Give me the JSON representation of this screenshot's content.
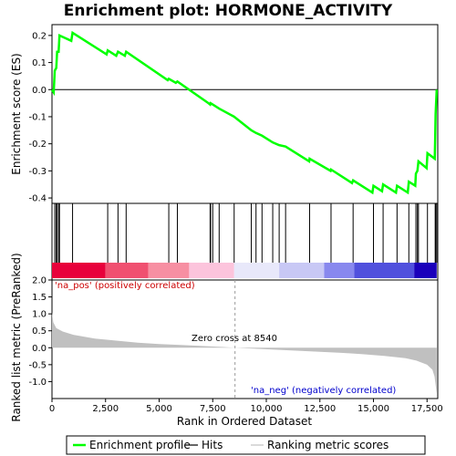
{
  "chart_data": {
    "title": "Enrichment plot: HORMONE_ACTIVITY",
    "xlabel": "Rank in Ordered Dataset",
    "es_panel": {
      "type": "line",
      "ylabel": "Enrichment score (ES)",
      "ylim": [
        -0.42,
        0.24
      ],
      "yticks": [
        0.2,
        0.1,
        0.0,
        -0.1,
        -0.2,
        -0.3,
        -0.4
      ],
      "ytick_labels": [
        "0.2",
        "0.1",
        "0.0",
        "-0.1",
        "-0.2",
        "-0.3",
        "-0.4"
      ],
      "line_color": "#00ff00",
      "points": [
        [
          0,
          0
        ],
        [
          80,
          -0.01
        ],
        [
          130,
          0.07
        ],
        [
          200,
          0.08
        ],
        [
          240,
          0.14
        ],
        [
          310,
          0.14
        ],
        [
          350,
          0.2
        ],
        [
          900,
          0.18
        ],
        [
          960,
          0.21
        ],
        [
          2550,
          0.13
        ],
        [
          2600,
          0.145
        ],
        [
          3000,
          0.125
        ],
        [
          3080,
          0.14
        ],
        [
          3400,
          0.125
        ],
        [
          3460,
          0.14
        ],
        [
          5400,
          0.035
        ],
        [
          5450,
          0.04
        ],
        [
          5780,
          0.025
        ],
        [
          5850,
          0.03
        ],
        [
          7300,
          -0.05
        ],
        [
          7380,
          -0.055
        ],
        [
          7400,
          -0.05
        ],
        [
          7500,
          -0.055
        ],
        [
          7800,
          -0.07
        ],
        [
          8500,
          -0.1
        ],
        [
          9300,
          -0.15
        ],
        [
          9520,
          -0.16
        ],
        [
          9800,
          -0.17
        ],
        [
          10300,
          -0.195
        ],
        [
          10600,
          -0.205
        ],
        [
          10900,
          -0.21
        ],
        [
          12000,
          -0.265
        ],
        [
          12020,
          -0.255
        ],
        [
          13000,
          -0.3
        ],
        [
          13020,
          -0.295
        ],
        [
          14000,
          -0.345
        ],
        [
          14050,
          -0.335
        ],
        [
          14950,
          -0.38
        ],
        [
          15000,
          -0.355
        ],
        [
          15400,
          -0.375
        ],
        [
          15450,
          -0.35
        ],
        [
          16050,
          -0.38
        ],
        [
          16100,
          -0.355
        ],
        [
          16600,
          -0.38
        ],
        [
          16650,
          -0.34
        ],
        [
          16950,
          -0.355
        ],
        [
          16980,
          -0.31
        ],
        [
          17050,
          -0.3
        ],
        [
          17100,
          -0.265
        ],
        [
          17480,
          -0.29
        ],
        [
          17520,
          -0.235
        ],
        [
          17860,
          -0.255
        ],
        [
          17880,
          -0.18
        ],
        [
          17900,
          -0.09
        ],
        [
          17950,
          0.0
        ]
      ]
    },
    "hits": [
      130,
      200,
      240,
      310,
      350,
      960,
      2600,
      3080,
      3460,
      5450,
      5850,
      7380,
      7400,
      7500,
      7800,
      8500,
      9300,
      9520,
      9800,
      10300,
      10600,
      10900,
      12020,
      13020,
      14050,
      15000,
      15450,
      16100,
      16650,
      16980,
      17050,
      17100,
      17520,
      17880,
      17900,
      17950
    ],
    "rank_panel": {
      "type": "area",
      "ylabel": "Ranked list metric (PreRanked)",
      "ylim": [
        -1.5,
        2.0
      ],
      "yticks": [
        2.0,
        1.5,
        1.0,
        0.5,
        0.0,
        -0.5,
        -1.0
      ],
      "ytick_labels": [
        "2.0",
        "1.5",
        "1.0",
        "0.5",
        "0.0",
        "-0.5",
        "-1.0"
      ],
      "fill_color": "#c0c0c0",
      "points": [
        [
          0,
          1.05
        ],
        [
          60,
          0.75
        ],
        [
          200,
          0.58
        ],
        [
          500,
          0.48
        ],
        [
          1000,
          0.38
        ],
        [
          2000,
          0.27
        ],
        [
          3000,
          0.21
        ],
        [
          4000,
          0.15
        ],
        [
          5000,
          0.11
        ],
        [
          6000,
          0.08
        ],
        [
          7000,
          0.05
        ],
        [
          8000,
          0.02
        ],
        [
          8540,
          0.0
        ],
        [
          9500,
          -0.03
        ],
        [
          10500,
          -0.06
        ],
        [
          11500,
          -0.09
        ],
        [
          12500,
          -0.12
        ],
        [
          13500,
          -0.15
        ],
        [
          14500,
          -0.19
        ],
        [
          15500,
          -0.24
        ],
        [
          16500,
          -0.31
        ],
        [
          17000,
          -0.38
        ],
        [
          17500,
          -0.5
        ],
        [
          17750,
          -0.65
        ],
        [
          17850,
          -0.85
        ],
        [
          17900,
          -1.1
        ],
        [
          17950,
          -1.35
        ]
      ],
      "annotations": {
        "pos_label": "'na_pos' (positively correlated)",
        "neg_label": "'na_neg' (negatively correlated)",
        "zero_cross": "Zero cross at 8540",
        "pos_color": "#cc0000",
        "neg_color": "#0000cc"
      },
      "zero_cross_x": 8540
    },
    "x_axis": {
      "xlim": [
        0,
        18000
      ],
      "xticks": [
        0,
        2500,
        5000,
        7500,
        10000,
        12500,
        15000,
        17500
      ],
      "xtick_labels": [
        "0",
        "2,500",
        "5,000",
        "7,500",
        "10,000",
        "12,500",
        "15,000",
        "17,500"
      ]
    },
    "color_bar": [
      {
        "from": 0,
        "to": 2500,
        "color": "#e8003b"
      },
      {
        "from": 2500,
        "to": 4500,
        "color": "#f05070"
      },
      {
        "from": 4500,
        "to": 6400,
        "color": "#f78fa2"
      },
      {
        "from": 6400,
        "to": 8500,
        "color": "#fcc4dc"
      },
      {
        "from": 8500,
        "to": 10600,
        "color": "#e8e8fa"
      },
      {
        "from": 10600,
        "to": 12700,
        "color": "#c8c8f5"
      },
      {
        "from": 12700,
        "to": 14100,
        "color": "#8888ee"
      },
      {
        "from": 14100,
        "to": 16900,
        "color": "#5050dd"
      },
      {
        "from": 16900,
        "to": 17950,
        "color": "#1a00bb"
      }
    ],
    "legend": {
      "placement": "bottom",
      "items": [
        {
          "label": "Enrichment profile",
          "color": "#00ff00",
          "kind": "line"
        },
        {
          "label": "Hits",
          "color": "#000000",
          "kind": "line"
        },
        {
          "label": "Ranking metric scores",
          "color": "#c0c0c0",
          "kind": "line"
        }
      ]
    }
  }
}
